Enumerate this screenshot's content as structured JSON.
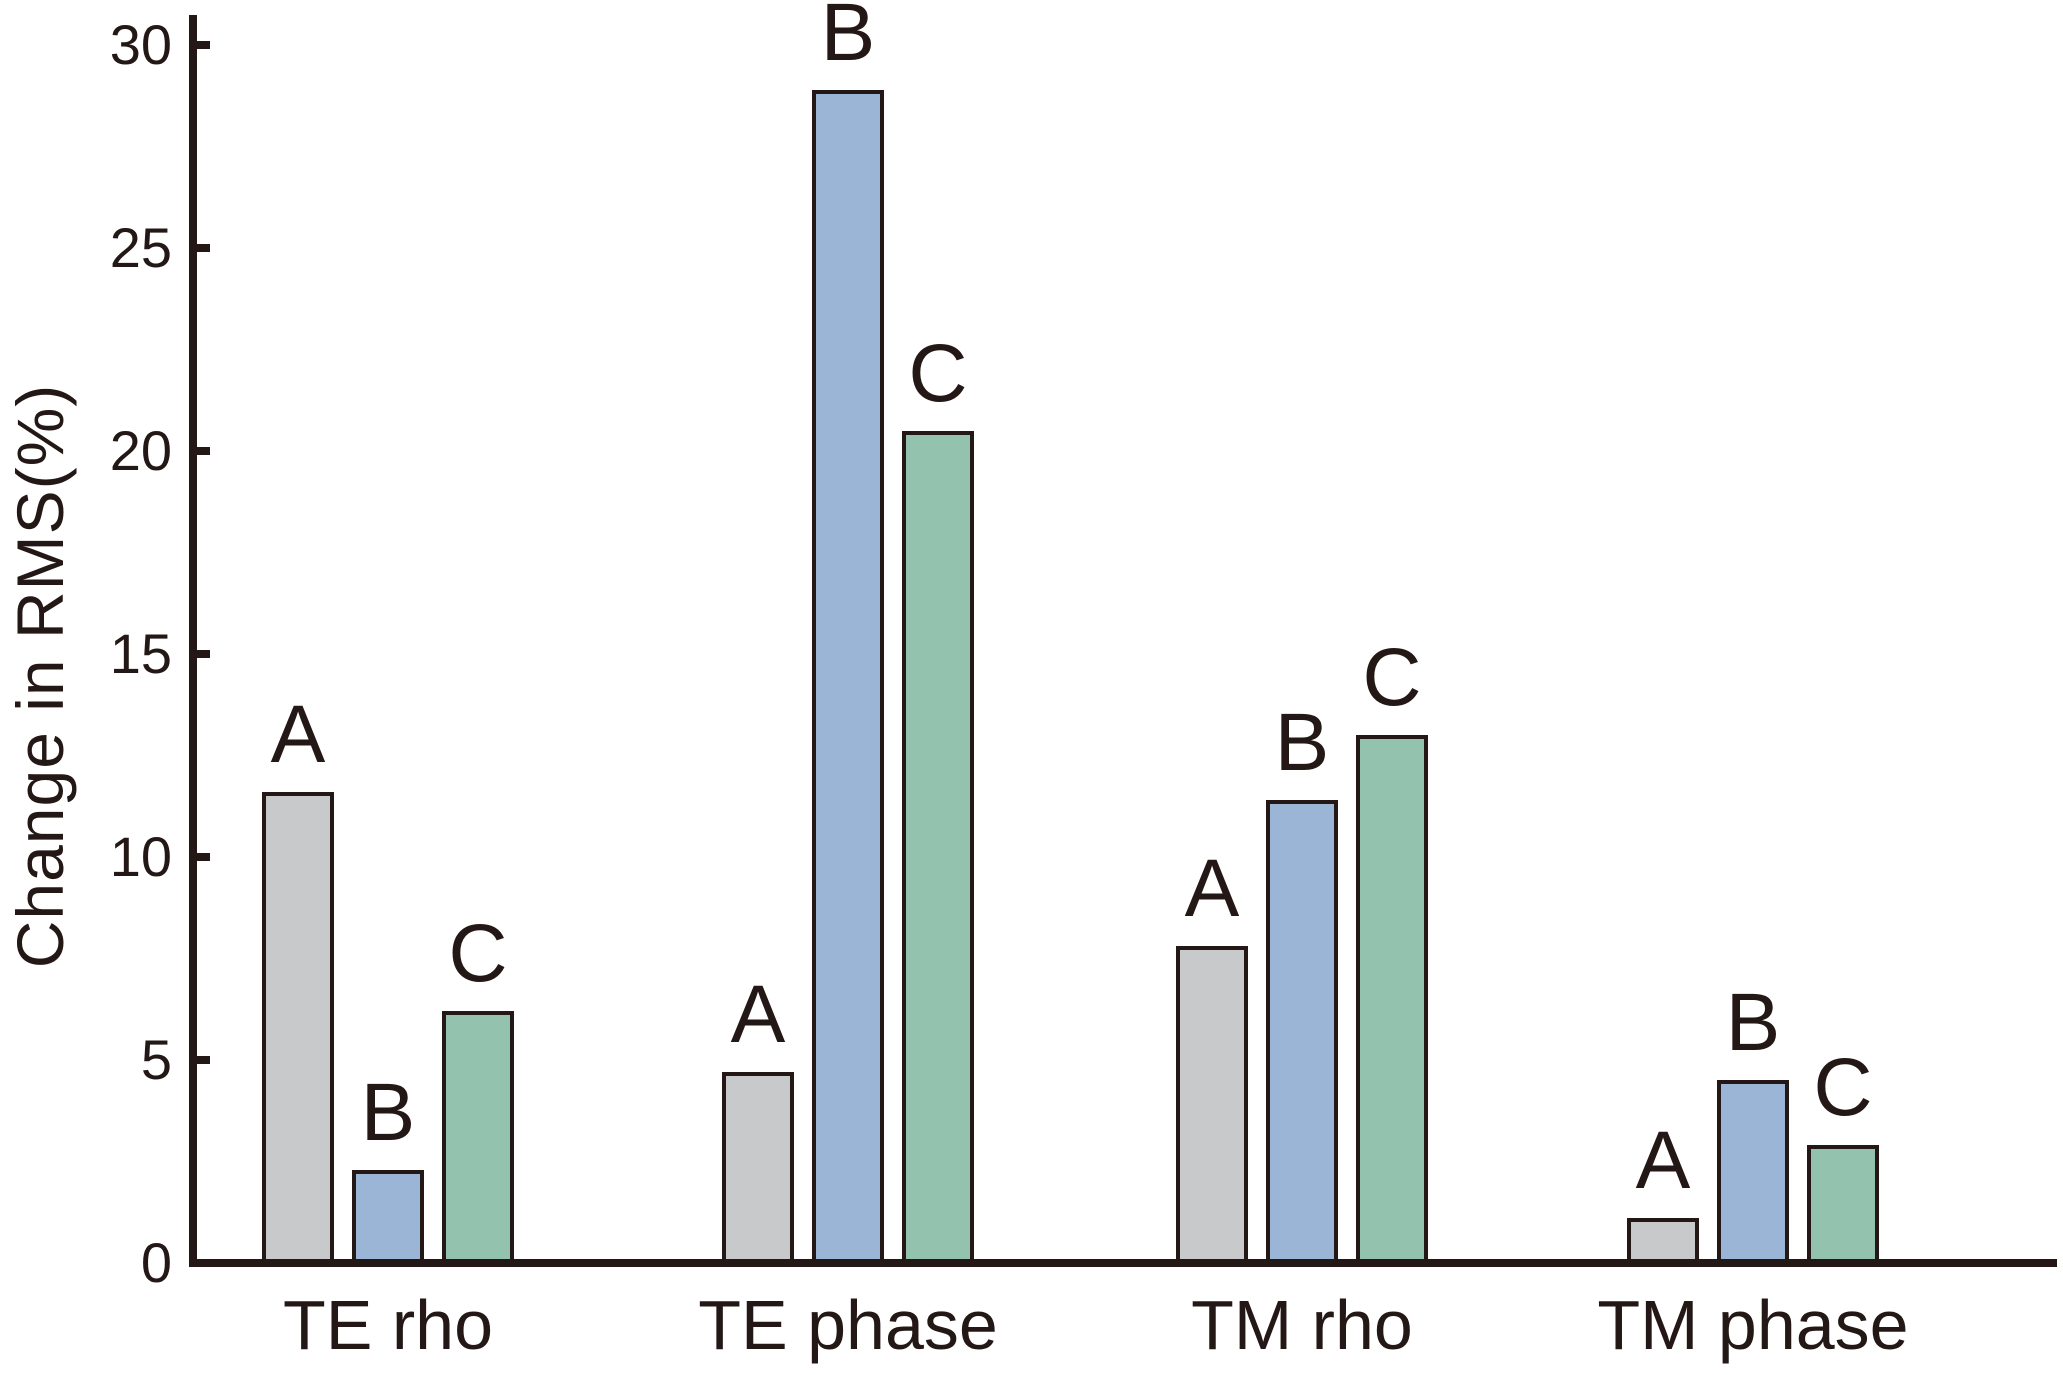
{
  "chart_data": {
    "type": "bar",
    "title": "",
    "xlabel": "",
    "ylabel": "Change in RMS(%)",
    "ylim": [
      0,
      30
    ],
    "yticks": [
      0,
      5,
      10,
      15,
      20,
      25,
      30
    ],
    "grid": false,
    "legend": "none (bars labeled directly)",
    "categories": [
      "TE rho",
      "TE phase",
      "TM rho",
      "TM phase"
    ],
    "series": [
      {
        "name": "A",
        "color": "#c8c9ca",
        "values": [
          11.6,
          4.7,
          7.8,
          1.1
        ]
      },
      {
        "name": "B",
        "color": "#9bb5d6",
        "values": [
          2.3,
          28.9,
          11.4,
          4.5
        ]
      },
      {
        "name": "C",
        "color": "#93c3ae",
        "values": [
          6.2,
          20.5,
          13.0,
          2.9
        ]
      }
    ],
    "bar_label_style": "series letter above each bar",
    "colors": {
      "axis": "#231815",
      "bar_border": "#231815",
      "background": "#ffffff"
    }
  }
}
